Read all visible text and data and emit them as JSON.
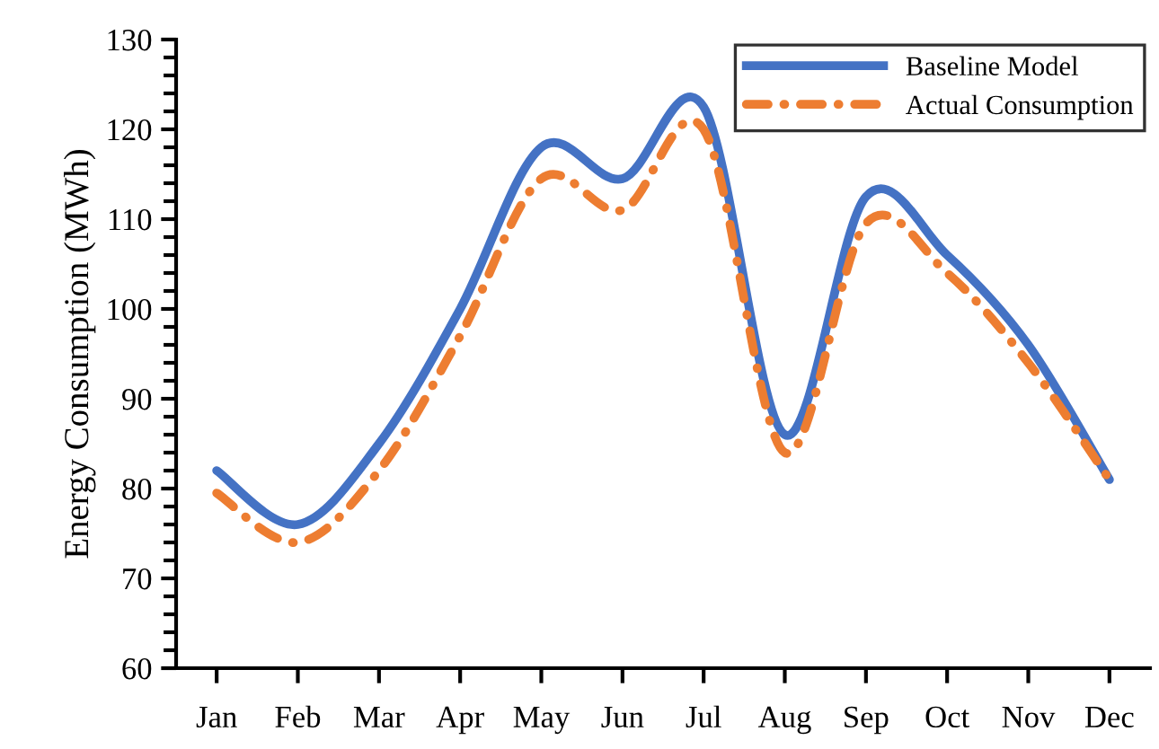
{
  "chart_data": {
    "type": "line",
    "ylabel": "Energy Consumption (MWh)",
    "categories": [
      "Jan",
      "Feb",
      "Mar",
      "Apr",
      "May",
      "Jun",
      "Jul",
      "Aug",
      "Sep",
      "Oct",
      "Nov",
      "Dec"
    ],
    "series": [
      {
        "name": "Baseline Model",
        "color": "#4472c4",
        "line_style": "solid",
        "values": [
          82,
          76,
          85,
          100,
          118,
          114.5,
          122.5,
          86,
          112.5,
          106,
          96,
          81
        ]
      },
      {
        "name": "Actual Consumption",
        "color": "#ed7d31",
        "line_style": "dashdot",
        "values": [
          79.5,
          74,
          82,
          97,
          114.5,
          111,
          120,
          84,
          109.5,
          104,
          94,
          81
        ]
      }
    ],
    "ylim": [
      60,
      130
    ],
    "yticks": [
      60,
      70,
      80,
      90,
      100,
      110,
      120,
      130
    ],
    "grid": false,
    "legend": "top right",
    "marker": "none"
  }
}
